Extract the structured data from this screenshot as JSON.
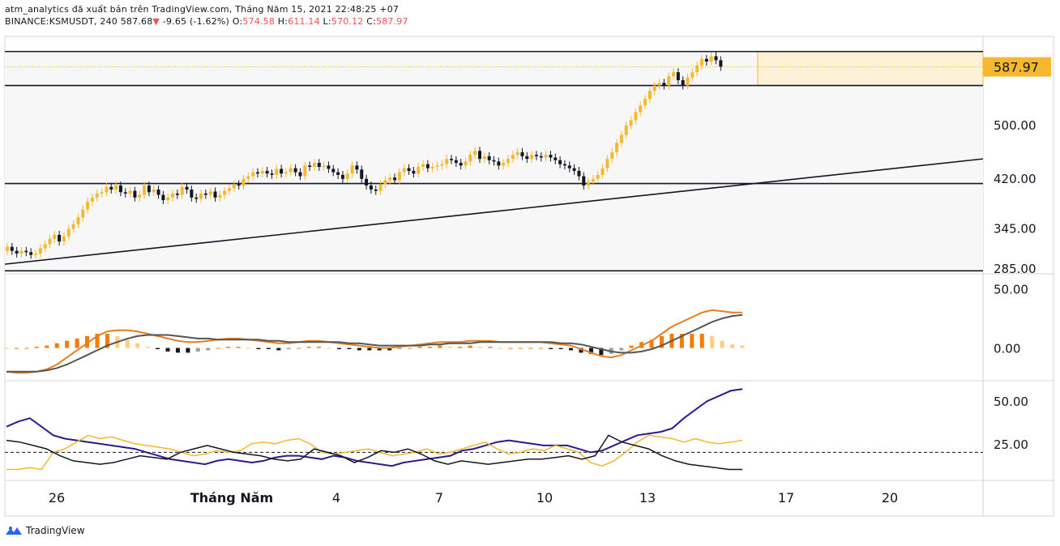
{
  "header": {
    "line1": "atm_analytics đã xuất bản trên TradingView.com, Tháng Năm 15, 2021 22:48:25 +07",
    "symbol": "BINANCE:KSMUSDT, 240",
    "last": "587.68",
    "change": "-9.65 (-1.62%)",
    "o_label": "O:",
    "o": "574.58",
    "h_label": "H:",
    "h": "611.14",
    "l_label": "L:",
    "l": "570.12",
    "c_label": "C:",
    "c": "587.97"
  },
  "footer": {
    "brand": "TradingView"
  },
  "colors": {
    "bull": "#f5b82e",
    "bear": "#131722",
    "macd": "#e67e22",
    "signal": "#555555",
    "adx": "#2d1b8c",
    "di_plus": "#f5b82e",
    "di_minus": "#131722",
    "price_tag": "#f5b82e"
  },
  "chart_data": [
    {
      "type": "candlestick",
      "pane": "price",
      "x_ticks": [
        "26",
        "Tháng Năm",
        "4",
        "7",
        "10",
        "13",
        "17",
        "20"
      ],
      "y_ticks": [
        "285.00",
        "345.00",
        "420.00",
        "500.00"
      ],
      "price_tag": "587.97",
      "ylim": [
        280,
        630
      ],
      "horizontal_levels": [
        611,
        560,
        413,
        282
      ],
      "trendline": {
        "from": 292,
        "to": 450
      },
      "closes": [
        318,
        312,
        308,
        312,
        310,
        306,
        308,
        316,
        322,
        330,
        336,
        326,
        334,
        345,
        352,
        362,
        374,
        386,
        392,
        398,
        400,
        408,
        404,
        410,
        400,
        398,
        402,
        392,
        396,
        410,
        400,
        404,
        396,
        388,
        392,
        398,
        396,
        408,
        404,
        392,
        390,
        398,
        396,
        401,
        392,
        396,
        402,
        406,
        412,
        410,
        420,
        424,
        430,
        428,
        432,
        428,
        426,
        435,
        428,
        430,
        436,
        430,
        424,
        440,
        438,
        444,
        438,
        440,
        435,
        430,
        426,
        420,
        428,
        440,
        434,
        420,
        410,
        404,
        402,
        412,
        418,
        422,
        418,
        430,
        436,
        432,
        428,
        438,
        442,
        436,
        438,
        440,
        442,
        450,
        448,
        444,
        440,
        446,
        456,
        462,
        450,
        454,
        448,
        446,
        440,
        444,
        450,
        456,
        460,
        454,
        450,
        456,
        454,
        452,
        456,
        452,
        448,
        442,
        440,
        436,
        432,
        424,
        410,
        416,
        420,
        426,
        436,
        450,
        460,
        474,
        486,
        500,
        508,
        520,
        530,
        540,
        552,
        560,
        564,
        560,
        574,
        580,
        568,
        560,
        572,
        580,
        590,
        600,
        596,
        604,
        598,
        588
      ],
      "opens": [
        312,
        318,
        312,
        308,
        312,
        310,
        306,
        308,
        316,
        322,
        330,
        336,
        326,
        334,
        345,
        352,
        362,
        374,
        386,
        392,
        398,
        400,
        408,
        404,
        410,
        400,
        398,
        402,
        392,
        396,
        410,
        400,
        404,
        396,
        388,
        392,
        398,
        396,
        408,
        404,
        392,
        390,
        398,
        396,
        401,
        392,
        396,
        402,
        406,
        412,
        410,
        420,
        424,
        430,
        428,
        432,
        428,
        426,
        435,
        428,
        430,
        436,
        430,
        424,
        440,
        438,
        444,
        438,
        440,
        435,
        430,
        426,
        420,
        428,
        440,
        434,
        420,
        410,
        404,
        402,
        412,
        418,
        422,
        418,
        430,
        436,
        432,
        428,
        438,
        442,
        436,
        438,
        440,
        442,
        450,
        448,
        444,
        440,
        446,
        456,
        462,
        450,
        454,
        448,
        446,
        440,
        444,
        450,
        456,
        460,
        454,
        450,
        456,
        454,
        452,
        456,
        452,
        448,
        442,
        440,
        436,
        432,
        424,
        410,
        416,
        420,
        426,
        436,
        450,
        460,
        474,
        486,
        500,
        508,
        520,
        530,
        540,
        552,
        560,
        564,
        560,
        574,
        580,
        568,
        560,
        572,
        580,
        590,
        600,
        596,
        604,
        598
      ]
    },
    {
      "type": "line",
      "pane": "macd",
      "y_ticks": [
        "0.00",
        "50.00"
      ],
      "ylim": [
        -25,
        60
      ],
      "series": [
        {
          "values": [
            -20,
            -21,
            -21,
            -20,
            -18,
            -14,
            -8,
            -2,
            4,
            10,
            14,
            15,
            15,
            14,
            12,
            10,
            8,
            6,
            5,
            5,
            6,
            7,
            8,
            8,
            7,
            6,
            5,
            4,
            4,
            5,
            6,
            6,
            5,
            4,
            3,
            2,
            1,
            0,
            0,
            1,
            2,
            3,
            4,
            5,
            5,
            5,
            6,
            6,
            6,
            5,
            5,
            5,
            5,
            5,
            4,
            3,
            2,
            -1,
            -4,
            -7,
            -8,
            -6,
            -2,
            2,
            6,
            12,
            18,
            22,
            26,
            30,
            32,
            31,
            30,
            30
          ]
        },
        {
          "values": [
            -20,
            -20,
            -20,
            -20,
            -19,
            -17,
            -14,
            -10,
            -6,
            -2,
            2,
            5,
            8,
            10,
            11,
            11,
            11,
            10,
            9,
            8,
            8,
            7,
            7,
            7,
            7,
            7,
            6,
            6,
            5,
            5,
            5,
            5,
            5,
            5,
            4,
            4,
            3,
            2,
            2,
            2,
            2,
            2,
            3,
            3,
            4,
            4,
            4,
            5,
            5,
            5,
            5,
            5,
            5,
            5,
            5,
            4,
            4,
            3,
            1,
            -1,
            -3,
            -4,
            -4,
            -3,
            -1,
            2,
            6,
            10,
            14,
            18,
            22,
            25,
            27,
            28
          ]
        }
      ],
      "histogram": [
        0,
        0,
        0,
        1,
        2,
        4,
        6,
        8,
        10,
        12,
        12,
        10,
        7,
        4,
        1,
        -1,
        -3,
        -4,
        -4,
        -3,
        -2,
        0,
        1,
        1,
        0,
        -1,
        -1,
        -2,
        -1,
        0,
        1,
        1,
        0,
        -1,
        -1,
        -2,
        -2,
        -2,
        -2,
        -1,
        0,
        1,
        1,
        2,
        1,
        1,
        2,
        1,
        1,
        0,
        0,
        0,
        0,
        0,
        -1,
        -1,
        -2,
        -4,
        -5,
        -6,
        -5,
        -2,
        2,
        5,
        7,
        10,
        12,
        12,
        12,
        12,
        10,
        6,
        3,
        2
      ]
    },
    {
      "type": "line",
      "pane": "dmi",
      "y_ticks": [
        "25.00",
        "50.00"
      ],
      "ylim": [
        5,
        60
      ],
      "reference_level": 20,
      "series": [
        {
          "values": [
            35,
            38,
            40,
            35,
            30,
            28,
            27,
            26,
            25,
            24,
            23,
            22,
            20,
            18,
            16,
            15,
            14,
            13,
            15,
            16,
            15,
            14,
            15,
            17,
            18,
            18,
            17,
            16,
            18,
            17,
            15,
            14,
            13,
            12,
            14,
            15,
            16,
            17,
            18,
            21,
            22,
            24,
            26,
            27,
            26,
            25,
            24,
            24,
            24,
            22,
            20,
            21,
            24,
            27,
            30,
            31,
            32,
            34,
            40,
            45,
            50,
            53,
            56,
            57
          ]
        },
        {
          "values": [
            10,
            10,
            11,
            10,
            20,
            22,
            26,
            30,
            28,
            29,
            27,
            25,
            24,
            23,
            22,
            20,
            18,
            19,
            21,
            20,
            21,
            25,
            26,
            25,
            27,
            28,
            25,
            20,
            19,
            20,
            21,
            22,
            20,
            18,
            19,
            20,
            22,
            19,
            20,
            22,
            24,
            26,
            22,
            19,
            20,
            22,
            21,
            24,
            22,
            20,
            14,
            12,
            15,
            20,
            26,
            30,
            29,
            28,
            26,
            28,
            26,
            25,
            26,
            27
          ]
        },
        {
          "values": [
            27,
            26,
            24,
            22,
            18,
            15,
            14,
            13,
            14,
            16,
            18,
            17,
            16,
            20,
            22,
            24,
            22,
            20,
            19,
            18,
            16,
            15,
            16,
            22,
            20,
            18,
            14,
            17,
            21,
            20,
            22,
            19,
            15,
            13,
            15,
            14,
            13,
            14,
            15,
            16,
            16,
            17,
            18,
            16,
            18,
            30,
            26,
            24,
            22,
            18,
            15,
            13,
            12,
            11,
            10,
            10
          ]
        }
      ]
    }
  ]
}
